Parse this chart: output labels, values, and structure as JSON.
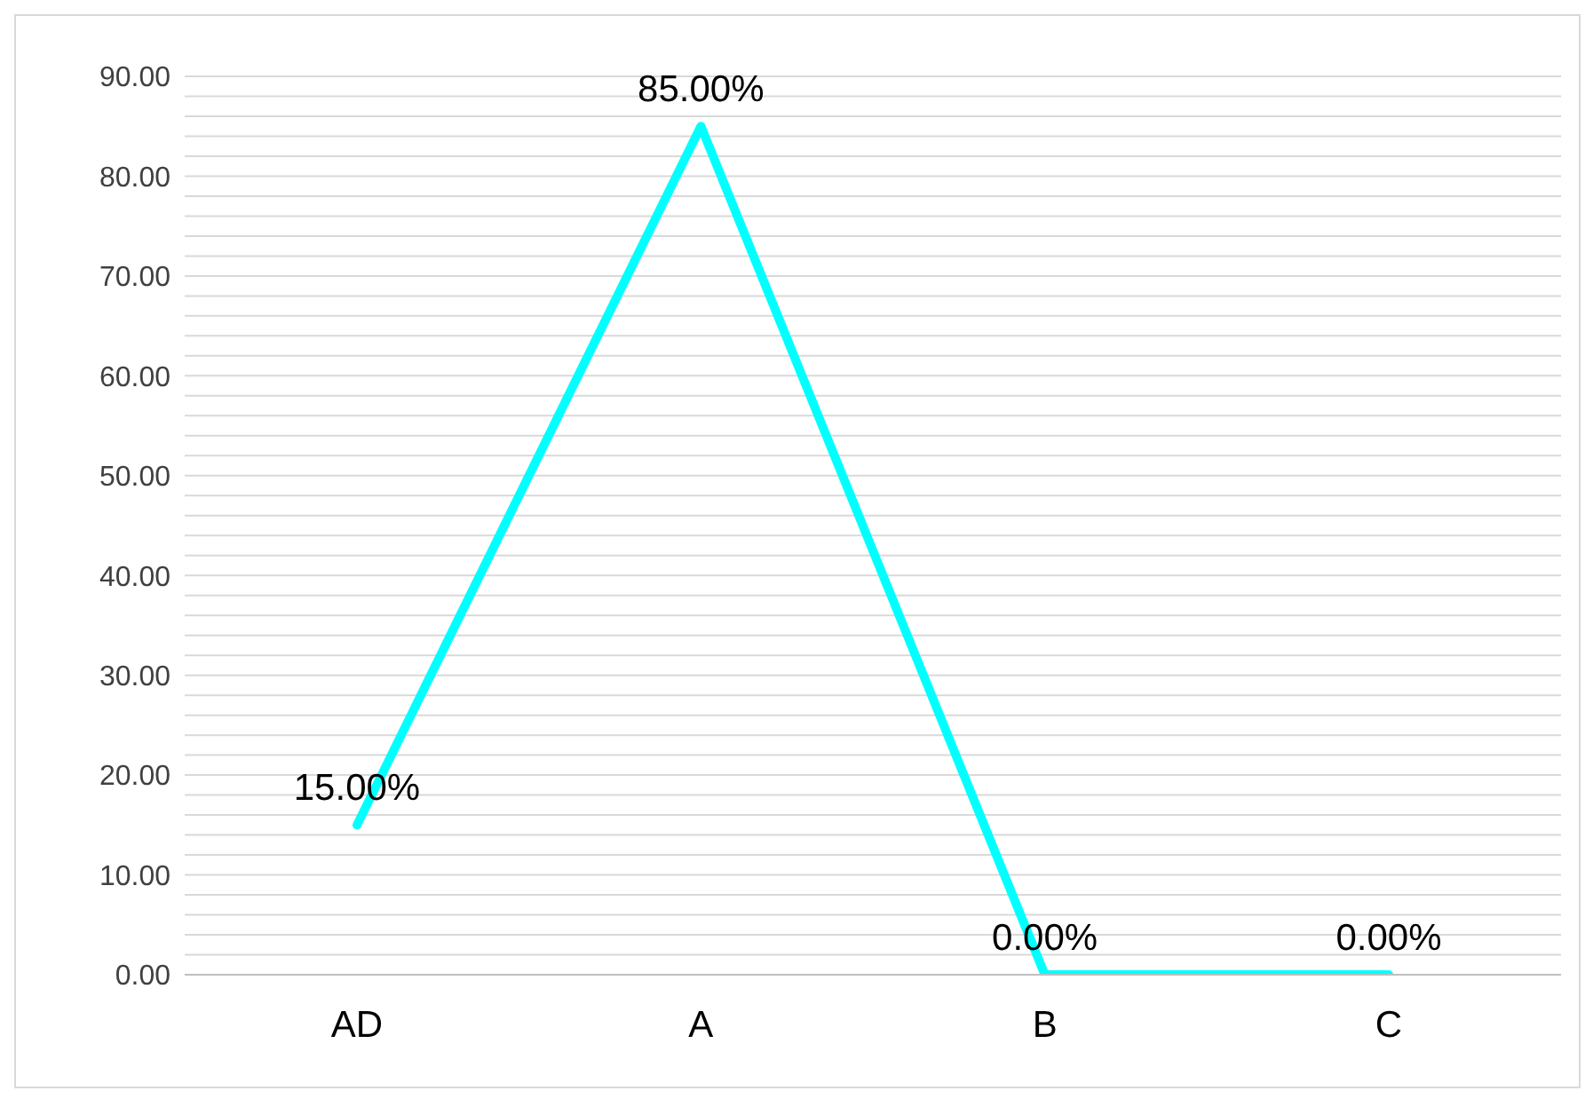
{
  "chart_data": {
    "type": "line",
    "categories": [
      "AD",
      "A",
      "B",
      "C"
    ],
    "series": [
      {
        "color": "#00ffff",
        "values": [
          15,
          85,
          0,
          0
        ],
        "value_labels": [
          "15.00%",
          "85.00%",
          "0.00%",
          "0.00%"
        ]
      }
    ],
    "ylim": [
      0,
      90
    ],
    "yticks": [
      {
        "value": 0,
        "label": "0.00"
      },
      {
        "value": 2,
        "label": null
      },
      {
        "value": 4,
        "label": null
      },
      {
        "value": 6,
        "label": null
      },
      {
        "value": 8,
        "label": null
      },
      {
        "value": 10,
        "label": "10.00"
      },
      {
        "value": 12,
        "label": null
      },
      {
        "value": 14,
        "label": null
      },
      {
        "value": 16,
        "label": null
      },
      {
        "value": 18,
        "label": null
      },
      {
        "value": 20,
        "label": "20.00"
      },
      {
        "value": 22,
        "label": null
      },
      {
        "value": 24,
        "label": null
      },
      {
        "value": 26,
        "label": null
      },
      {
        "value": 28,
        "label": null
      },
      {
        "value": 30,
        "label": "30.00"
      },
      {
        "value": 32,
        "label": null
      },
      {
        "value": 34,
        "label": null
      },
      {
        "value": 36,
        "label": null
      },
      {
        "value": 38,
        "label": null
      },
      {
        "value": 40,
        "label": "40.00"
      },
      {
        "value": 42,
        "label": null
      },
      {
        "value": 44,
        "label": null
      },
      {
        "value": 46,
        "label": null
      },
      {
        "value": 48,
        "label": null
      },
      {
        "value": 50,
        "label": "50.00"
      },
      {
        "value": 52,
        "label": null
      },
      {
        "value": 54,
        "label": null
      },
      {
        "value": 56,
        "label": null
      },
      {
        "value": 58,
        "label": null
      },
      {
        "value": 60,
        "label": "60.00"
      },
      {
        "value": 62,
        "label": null
      },
      {
        "value": 64,
        "label": null
      },
      {
        "value": 66,
        "label": null
      },
      {
        "value": 68,
        "label": null
      },
      {
        "value": 70,
        "label": "70.00"
      },
      {
        "value": 72,
        "label": null
      },
      {
        "value": 74,
        "label": null
      },
      {
        "value": 76,
        "label": null
      },
      {
        "value": 78,
        "label": null
      },
      {
        "value": 80,
        "label": "80.00"
      },
      {
        "value": 82,
        "label": null
      },
      {
        "value": 84,
        "label": null
      },
      {
        "value": 86,
        "label": null
      },
      {
        "value": 88,
        "label": null
      },
      {
        "value": 90,
        "label": "90.00"
      }
    ],
    "grid": true,
    "marker": "none",
    "line_style": "solid",
    "legend": false
  }
}
